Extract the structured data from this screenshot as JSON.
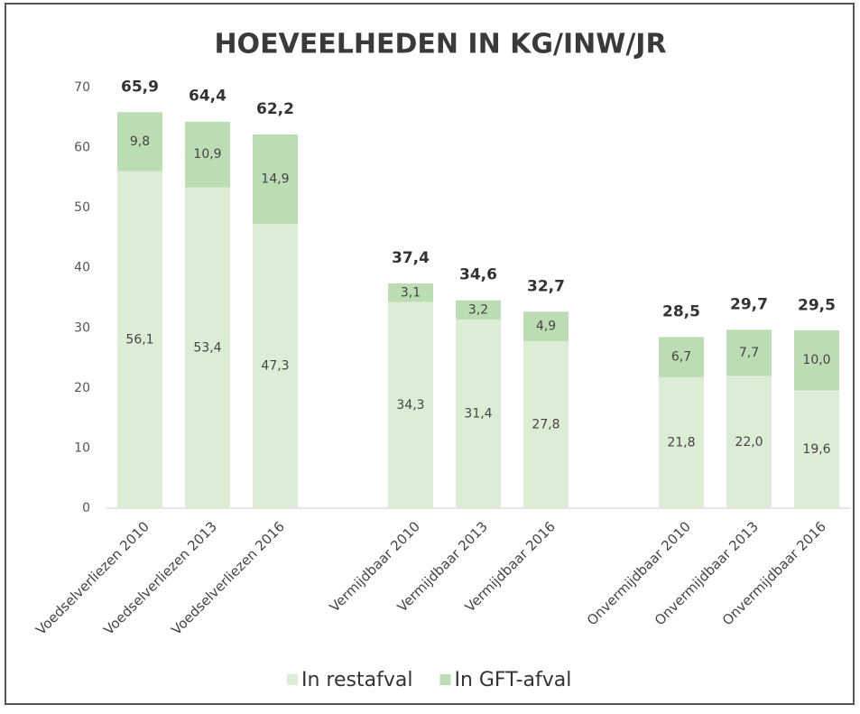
{
  "chart_data": {
    "type": "stacked_bar",
    "title": "HOEVEELHEDEN IN KG/INW/JR",
    "categories": [
      "Voedselverliezen 2010",
      "Voedselverliezen 2013",
      "Voedselverliezen 2016",
      null,
      "Vermijdbaar 2010",
      "Vermijdbaar 2013",
      "Vermijdbaar 2016",
      null,
      "Onvermijdbaar 2010",
      "Onvermijdbaar 2013",
      "Onvermijdbaar 2016"
    ],
    "series": [
      {
        "name": "In restafval",
        "color": "#dcedd6",
        "values": [
          56.1,
          53.4,
          47.3,
          null,
          34.3,
          31.4,
          27.8,
          null,
          21.8,
          22.0,
          19.6
        ],
        "value_labels": [
          "56,1",
          "53,4",
          "47,3",
          null,
          "34,3",
          "31,4",
          "27,8",
          null,
          "21,8",
          "22,0",
          "19,6"
        ]
      },
      {
        "name": "In GFT-afval",
        "color": "#bcdcb3",
        "values": [
          9.8,
          10.9,
          14.9,
          null,
          3.1,
          3.2,
          4.9,
          null,
          6.7,
          7.7,
          10.0
        ],
        "value_labels": [
          "9,8",
          "10,9",
          "14,9",
          null,
          "3,1",
          "3,2",
          "4,9",
          null,
          "6,7",
          "7,7",
          "10,0"
        ]
      }
    ],
    "totals": [
      65.9,
      64.4,
      62.2,
      null,
      37.4,
      34.6,
      32.7,
      null,
      28.5,
      29.7,
      29.5
    ],
    "totals_labels": [
      "65,9",
      "64,4",
      "62,2",
      null,
      "37,4",
      "34,6",
      "32,7",
      null,
      "28,5",
      "29,7",
      "29,5"
    ],
    "ylim": [
      0,
      70
    ],
    "yticks": [
      0,
      10,
      20,
      30,
      40,
      50,
      60,
      70
    ],
    "grid": false,
    "legend": "bottom"
  }
}
